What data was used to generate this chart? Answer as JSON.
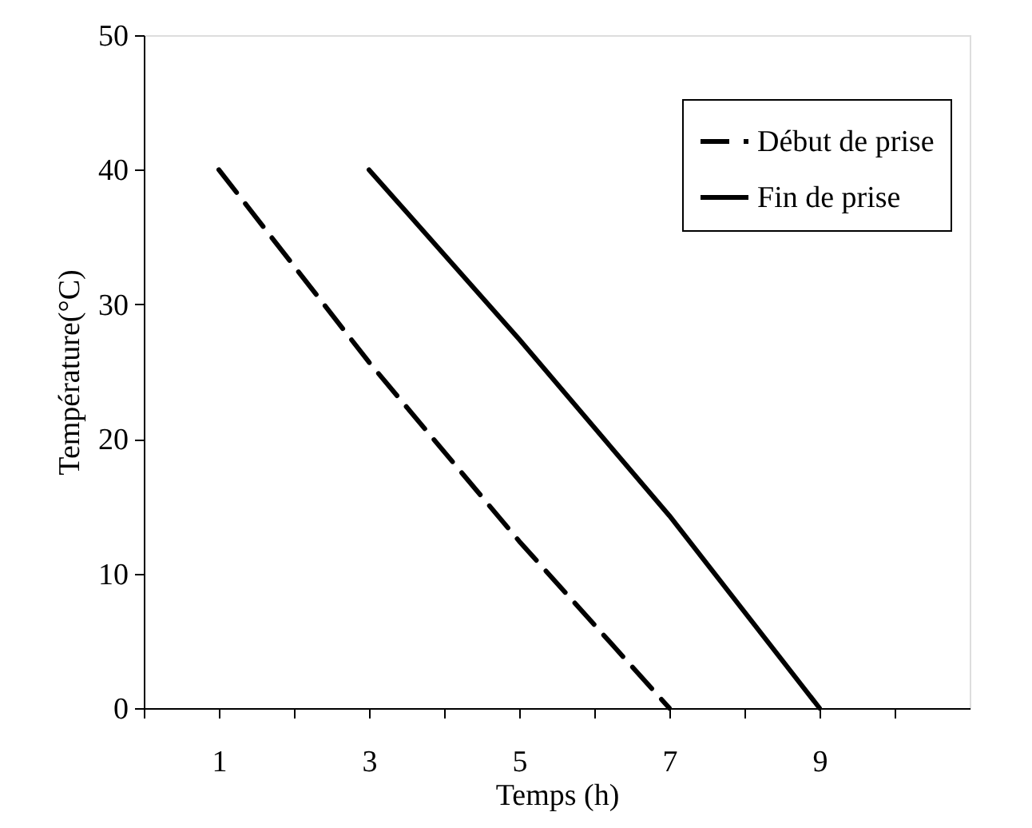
{
  "chart_data": {
    "type": "line",
    "xlabel": "Temps (h)",
    "ylabel": "Température(°C)",
    "xlim": [
      0,
      11
    ],
    "xticks": [
      {
        "value": 0,
        "label": null
      },
      1,
      {
        "value": 2,
        "label": null
      },
      3,
      {
        "value": 4,
        "label": null
      },
      5,
      {
        "value": 6,
        "label": null
      },
      7,
      {
        "value": 8,
        "label": null
      },
      9,
      {
        "value": 10,
        "label": null
      }
    ],
    "ylim": [
      0,
      50
    ],
    "yticks": [
      0,
      10,
      20,
      30,
      40,
      50
    ],
    "grid": false,
    "legend": "top right",
    "marker": "none",
    "series": [
      {
        "name": "Début de prise",
        "color": "#000000",
        "line_style": "dashed",
        "x": [
          1,
          3,
          5,
          7
        ],
        "values": [
          40,
          25.7,
          12.4,
          0
        ]
      },
      {
        "name": "Fin de prise",
        "color": "#000000",
        "line_style": "solid",
        "x": [
          3,
          5,
          7,
          9
        ],
        "values": [
          40,
          27.4,
          14.3,
          0
        ]
      }
    ]
  }
}
